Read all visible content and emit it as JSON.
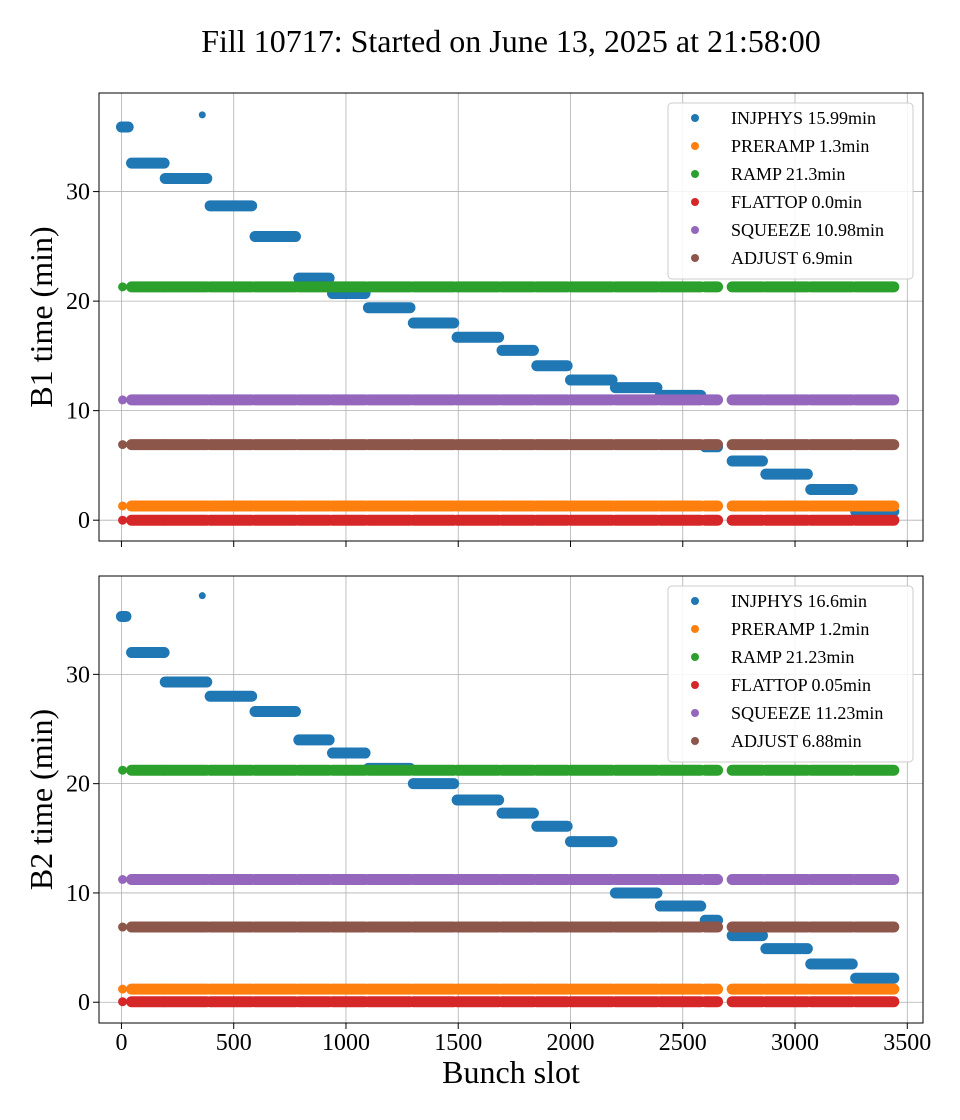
{
  "figure": {
    "title": "Fill 10717: Started on June 13, 2025 at 21:58:00",
    "xlabel": "Bunch slot",
    "x_ticks": [
      0,
      500,
      1000,
      1500,
      2000,
      2500,
      3000,
      3500
    ]
  },
  "chart_data": [
    {
      "type": "scatter",
      "ylabel": "B1 time (min)",
      "xlim": [
        -100,
        3570
      ],
      "ylim": [
        -1.9,
        39
      ],
      "y_ticks": [
        0,
        10,
        20,
        30
      ],
      "grid": true,
      "legend_position": "top-right",
      "series": [
        {
          "name": "INJPHYS 15.99min",
          "color": "#1f77b4",
          "segments": [
            {
              "x": [
                0,
                30
              ],
              "y": 35.9
            },
            {
              "x": [
                45,
                190
              ],
              "y": 32.6
            },
            {
              "x": [
                195,
                380
              ],
              "y": 31.2
            },
            {
              "x": [
                395,
                580
              ],
              "y": 28.7
            },
            {
              "x": [
                595,
                775
              ],
              "y": 25.9
            },
            {
              "x": [
                790,
                925
              ],
              "y": 22.1
            },
            {
              "x": [
                940,
                1085
              ],
              "y": 20.7
            },
            {
              "x": [
                1100,
                1285
              ],
              "y": 19.4
            },
            {
              "x": [
                1300,
                1480
              ],
              "y": 18.0
            },
            {
              "x": [
                1495,
                1680
              ],
              "y": 16.7
            },
            {
              "x": [
                1695,
                1835
              ],
              "y": 15.5
            },
            {
              "x": [
                1850,
                1985
              ],
              "y": 14.1
            },
            {
              "x": [
                2000,
                2185
              ],
              "y": 12.8
            },
            {
              "x": [
                2200,
                2385
              ],
              "y": 12.1
            },
            {
              "x": [
                2400,
                2580
              ],
              "y": 11.4
            },
            {
              "x": [
                2600,
                2655
              ],
              "y": 6.7
            },
            {
              "x": [
                2720,
                2855
              ],
              "y": 5.4
            },
            {
              "x": [
                2870,
                3055
              ],
              "y": 4.2
            },
            {
              "x": [
                3070,
                3255
              ],
              "y": 2.8
            },
            {
              "x": [
                3270,
                3440
              ],
              "y": 0.8
            }
          ],
          "points": [
            {
              "x": 360,
              "y": 37.0
            }
          ]
        },
        {
          "name": "PRERAMP 1.3min",
          "color": "#ff7f0e",
          "value": 1.3
        },
        {
          "name": "RAMP 21.3min",
          "color": "#2ca02c",
          "value": 21.3
        },
        {
          "name": "FLATTOP 0.0min",
          "color": "#d62728",
          "value": 0.0
        },
        {
          "name": "SQUEEZE 10.98min",
          "color": "#9467bd",
          "value": 10.98
        },
        {
          "name": "ADJUST 6.9min",
          "color": "#8c564b",
          "value": 6.9
        }
      ]
    },
    {
      "type": "scatter",
      "ylabel": "B2 time (min)",
      "xlim": [
        -100,
        3570
      ],
      "ylim": [
        -1.9,
        39
      ],
      "y_ticks": [
        0,
        10,
        20,
        30
      ],
      "grid": true,
      "legend_position": "top-right",
      "series": [
        {
          "name": "INJPHYS 16.6min",
          "color": "#1f77b4",
          "segments": [
            {
              "x": [
                0,
                20
              ],
              "y": 35.3
            },
            {
              "x": [
                45,
                190
              ],
              "y": 32.0
            },
            {
              "x": [
                195,
                380
              ],
              "y": 29.3
            },
            {
              "x": [
                395,
                580
              ],
              "y": 28.0
            },
            {
              "x": [
                595,
                775
              ],
              "y": 26.6
            },
            {
              "x": [
                790,
                925
              ],
              "y": 24.0
            },
            {
              "x": [
                940,
                1085
              ],
              "y": 22.8
            },
            {
              "x": [
                1100,
                1285
              ],
              "y": 21.4
            },
            {
              "x": [
                1300,
                1480
              ],
              "y": 20.0
            },
            {
              "x": [
                1495,
                1680
              ],
              "y": 18.5
            },
            {
              "x": [
                1695,
                1835
              ],
              "y": 17.3
            },
            {
              "x": [
                1850,
                1985
              ],
              "y": 16.1
            },
            {
              "x": [
                2000,
                2185
              ],
              "y": 14.7
            },
            {
              "x": [
                2200,
                2385
              ],
              "y": 10.0
            },
            {
              "x": [
                2400,
                2580
              ],
              "y": 8.8
            },
            {
              "x": [
                2600,
                2655
              ],
              "y": 7.5
            },
            {
              "x": [
                2720,
                2855
              ],
              "y": 6.1
            },
            {
              "x": [
                2870,
                3055
              ],
              "y": 4.9
            },
            {
              "x": [
                3070,
                3255
              ],
              "y": 3.5
            },
            {
              "x": [
                3270,
                3440
              ],
              "y": 2.2
            }
          ],
          "points": [
            {
              "x": 360,
              "y": 37.2
            }
          ]
        },
        {
          "name": "PRERAMP 1.2min",
          "color": "#ff7f0e",
          "value": 1.2
        },
        {
          "name": "RAMP 21.23min",
          "color": "#2ca02c",
          "value": 21.23
        },
        {
          "name": "FLATTOP 0.05min",
          "color": "#d62728",
          "value": 0.05
        },
        {
          "name": "SQUEEZE 11.23min",
          "color": "#9467bd",
          "value": 11.23
        },
        {
          "name": "ADJUST 6.88min",
          "color": "#8c564b",
          "value": 6.88
        }
      ]
    }
  ],
  "bunch_train_gaps": [
    [
      0,
      15,
      45
    ],
    [
      2655,
      2720
    ]
  ]
}
